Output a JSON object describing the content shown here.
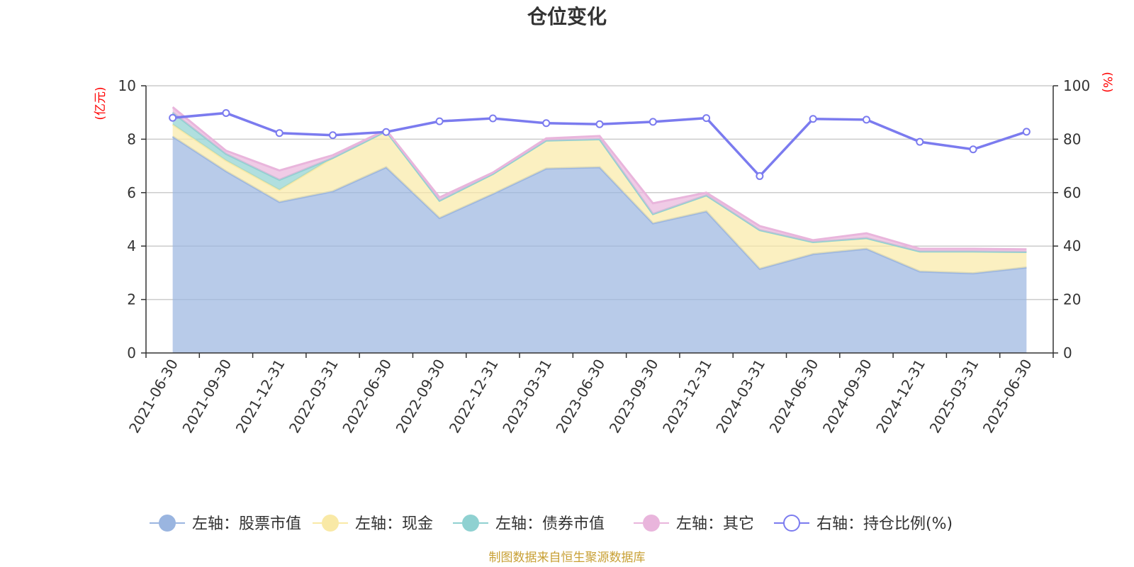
{
  "chart_data": {
    "type": "area",
    "title": "仓位变化",
    "left_unit": "(亿元)",
    "right_unit": "(%)",
    "categories": [
      "2021-06-30",
      "2021-09-30",
      "2021-12-31",
      "2022-03-31",
      "2022-06-30",
      "2022-09-30",
      "2022-12-31",
      "2023-03-31",
      "2023-06-30",
      "2023-09-30",
      "2023-12-31",
      "2024-03-31",
      "2024-06-30",
      "2024-09-30",
      "2024-12-31",
      "2025-03-31",
      "2025-06-30"
    ],
    "left_axis": {
      "min": 0,
      "max": 10,
      "ticks": [
        "0",
        "2",
        "4",
        "6",
        "8",
        "10"
      ]
    },
    "right_axis": {
      "min": 0,
      "max": 100,
      "ticks": [
        "0",
        "20",
        "40",
        "60",
        "80",
        "100"
      ]
    },
    "stacked_series": [
      {
        "name": "左轴：股票市值",
        "color": "#9ab5e0",
        "values": [
          8.1,
          6.8,
          5.65,
          6.05,
          6.95,
          5.05,
          5.95,
          6.9,
          6.95,
          4.85,
          5.3,
          3.15,
          3.7,
          3.9,
          3.05,
          2.98,
          3.2
        ]
      },
      {
        "name": "左轴：现金",
        "color": "#f9e9a6",
        "values": [
          0.45,
          0.4,
          0.45,
          1.25,
          1.35,
          0.65,
          0.75,
          1.05,
          1.05,
          0.35,
          0.6,
          1.45,
          0.45,
          0.4,
          0.75,
          0.82,
          0.58
        ]
      },
      {
        "name": "左轴：债券市值",
        "color": "#8fd1d1",
        "values": [
          0.45,
          0.25,
          0.38,
          0,
          0,
          0,
          0,
          0,
          0,
          0,
          0,
          0,
          0,
          0,
          0,
          0,
          0
        ]
      },
      {
        "name": "左轴：其它",
        "color": "#e9b5dc",
        "values": [
          0.2,
          0.12,
          0.35,
          0.1,
          0.05,
          0.12,
          0.05,
          0.08,
          0.12,
          0.4,
          0.1,
          0.15,
          0.07,
          0.18,
          0.1,
          0.1,
          0.1
        ]
      }
    ],
    "line_series": {
      "name": "右轴：持仓比例(%)",
      "color": "#7b7bef",
      "values": [
        88,
        89.8,
        82.3,
        81.5,
        82.7,
        86.7,
        87.8,
        86,
        85.6,
        86.5,
        87.9,
        66.2,
        87.6,
        87.3,
        79,
        76.2,
        82.8
      ]
    },
    "grid": true,
    "legend_position": "bottom"
  },
  "footer": {
    "source": "制图数据来自恒生聚源数据库"
  }
}
